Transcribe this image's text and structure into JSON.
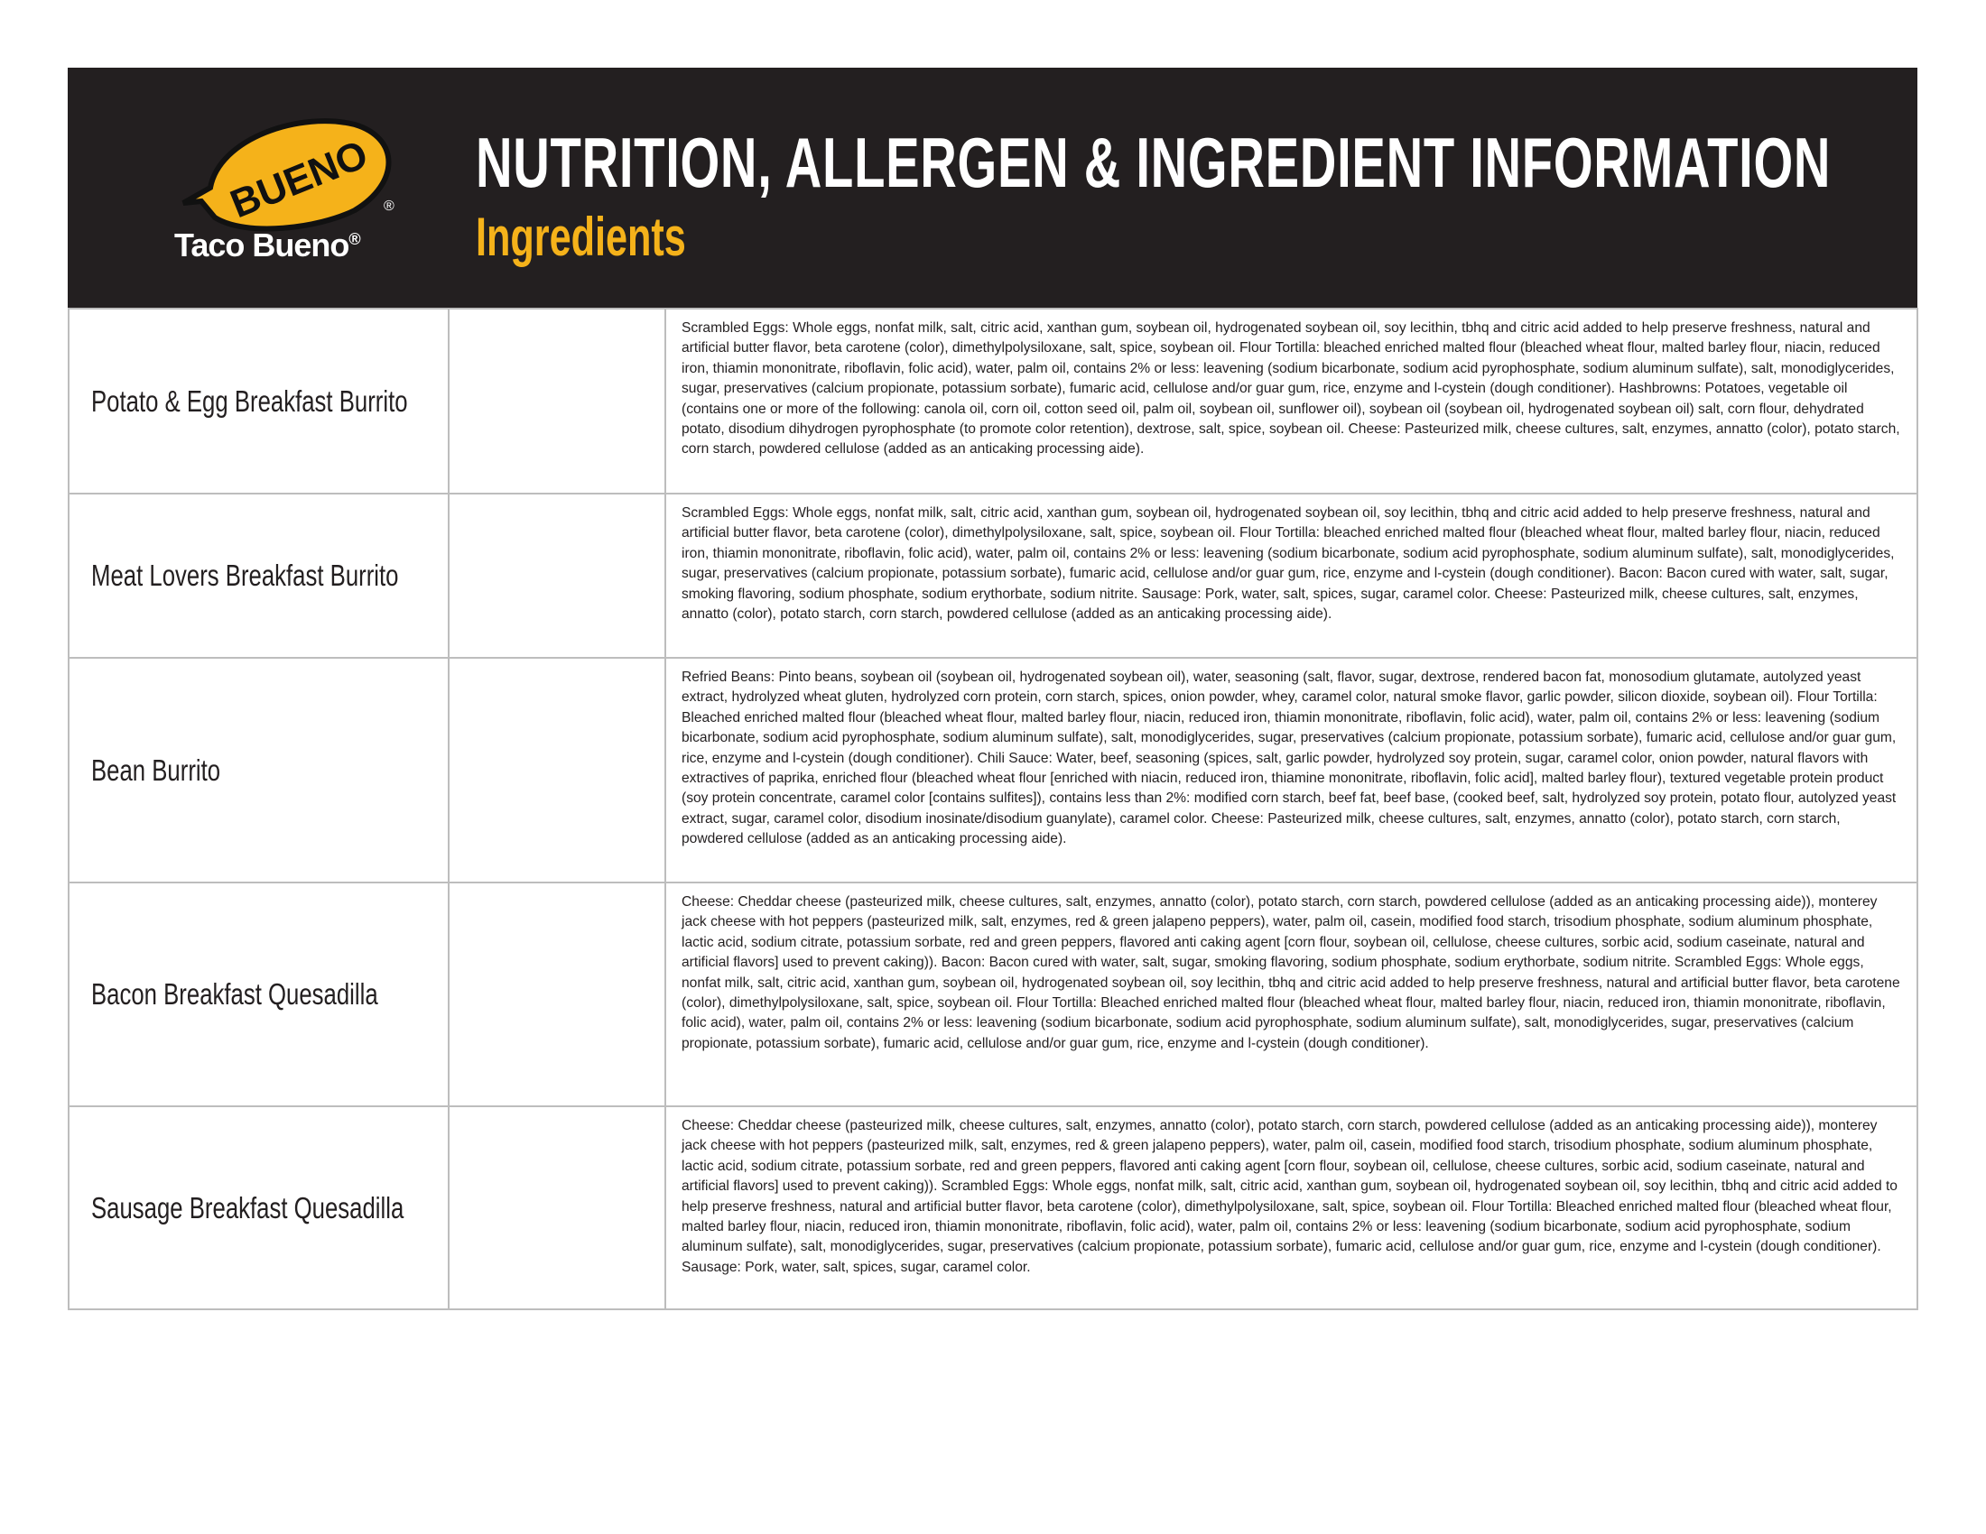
{
  "header": {
    "logo_text": "BUENO",
    "brand": "Taco Bueno",
    "brand_mark": "®",
    "title": "NUTRITION, ALLERGEN & INGREDIENT INFORMATION",
    "subtitle": "Ingredients",
    "colors": {
      "background": "#231f20",
      "accent": "#f5b21a"
    }
  },
  "items": [
    {
      "name": "Potato & Egg Breakfast Burrito",
      "ingredients": "Scrambled Eggs: Whole eggs, nonfat milk, salt, citric acid, xanthan gum, soybean oil, hydrogenated soybean oil, soy lecithin, tbhq and citric acid added to help preserve freshness, natural and artificial butter flavor, beta carotene (color), dimethylpolysiloxane, salt, spice, soybean oil. Flour Tortilla: bleached enriched malted flour (bleached wheat flour, malted barley flour, niacin, reduced iron, thiamin mononitrate, riboflavin, folic acid), water, palm oil, contains 2% or less: leavening (sodium bicarbonate, sodium acid pyrophosphate, sodium aluminum sulfate), salt, monodiglycerides, sugar, preservatives (calcium propionate, potassium sorbate), fumaric acid, cellulose and/or guar gum, rice, enzyme and l-cystein (dough conditioner). Hashbrowns: Potatoes, vegetable oil (contains one or more of the following: canola oil, corn oil, cotton seed oil, palm oil, soybean oil, sunflower oil), soybean oil (soybean oil, hydrogenated soybean oil) salt, corn flour, dehydrated potato, disodium dihydrogen pyrophosphate (to promote color retention), dextrose, salt, spice, soybean oil. Cheese: Pasteurized milk, cheese cultures, salt, enzymes, annatto (color), potato starch, corn starch, powdered cellulose (added as an anticaking processing aide)."
    },
    {
      "name": "Meat Lovers Breakfast Burrito",
      "ingredients": "Scrambled Eggs: Whole eggs, nonfat milk, salt, citric acid, xanthan gum, soybean oil, hydrogenated soybean oil, soy lecithin, tbhq and citric acid added to help preserve freshness, natural and artificial butter flavor, beta carotene (color), dimethylpolysiloxane, salt, spice, soybean oil. Flour Tortilla: bleached enriched malted flour (bleached wheat flour, malted barley flour, niacin, reduced iron, thiamin mononitrate, riboflavin, folic acid), water, palm oil, contains 2% or less: leavening (sodium bicarbonate, sodium acid pyrophosphate, sodium aluminum sulfate), salt, monodiglycerides, sugar, preservatives (calcium propionate, potassium sorbate), fumaric acid, cellulose and/or guar gum, rice, enzyme and l-cystein (dough conditioner). Bacon: Bacon cured with water, salt, sugar, smoking flavoring, sodium phosphate, sodium erythorbate, sodium nitrite. Sausage: Pork, water, salt, spices, sugar, caramel color. Cheese: Pasteurized milk, cheese cultures, salt, enzymes, annatto (color), potato starch, corn starch, powdered cellulose (added as an anticaking processing aide)."
    },
    {
      "name": "Bean Burrito",
      "ingredients": "Refried Beans: Pinto beans, soybean oil (soybean oil, hydrogenated soybean oil), water, seasoning (salt, flavor, sugar, dextrose, rendered bacon fat, monosodium glutamate, autolyzed yeast extract, hydrolyzed wheat gluten, hydrolyzed corn protein, corn starch, spices, onion powder, whey, caramel color, natural smoke flavor, garlic powder, silicon dioxide, soybean oil). Flour Tortilla: Bleached enriched malted flour (bleached wheat flour, malted barley flour, niacin, reduced iron, thiamin mononitrate, riboflavin, folic acid), water, palm oil, contains 2% or less: leavening (sodium bicarbonate, sodium acid pyrophosphate, sodium aluminum sulfate), salt, monodiglycerides, sugar, preservatives (calcium propionate, potassium sorbate), fumaric acid, cellulose and/or guar gum, rice, enzyme and l-cystein (dough conditioner). Chili Sauce: Water, beef, seasoning (spices, salt, garlic powder, hydrolyzed soy protein, sugar, caramel color, onion powder, natural flavors with extractives of paprika, enriched flour (bleached wheat flour [enriched with niacin, reduced iron, thiamine mononitrate, riboflavin, folic acid], malted barley flour), textured vegetable protein product (soy protein concentrate, caramel color [contains sulfites]), contains less than 2%: modified corn starch, beef fat, beef base, (cooked beef, salt, hydrolyzed soy protein, potato flour, autolyzed yeast extract, sugar, caramel color, disodium inosinate/disodium guanylate), caramel color. Cheese: Pasteurized milk, cheese cultures, salt, enzymes, annatto (color), potato starch, corn starch, powdered cellulose (added as an anticaking processing aide)."
    },
    {
      "name": "Bacon Breakfast Quesadilla",
      "ingredients": "Cheese: Cheddar cheese (pasteurized milk, cheese cultures, salt, enzymes, annatto (color), potato starch, corn starch, powdered cellulose (added as an anticaking processing aide)), monterey jack cheese with hot peppers (pasteurized milk, salt, enzymes, red & green jalapeno peppers), water, palm oil, casein, modified food starch, trisodium phosphate, sodium aluminum phosphate, lactic acid, sodium citrate, potassium sorbate, red and green peppers, flavored anti caking agent [corn flour, soybean oil, cellulose, cheese cultures, sorbic acid, sodium caseinate, natural and artificial flavors] used to prevent caking)). Bacon: Bacon cured with water, salt, sugar, smoking flavoring, sodium phosphate, sodium erythorbate, sodium nitrite. Scrambled Eggs: Whole eggs, nonfat milk, salt, citric acid, xanthan gum, soybean oil, hydrogenated soybean oil, soy lecithin, tbhq and citric acid added to help preserve freshness, natural and artificial butter flavor, beta carotene (color), dimethylpolysiloxane, salt, spice, soybean oil.  Flour Tortilla: Bleached enriched malted flour (bleached wheat flour, malted barley flour, niacin, reduced iron, thiamin mononitrate, riboflavin, folic acid), water, palm oil, contains 2% or less: leavening (sodium bicarbonate, sodium acid pyrophosphate, sodium aluminum sulfate), salt, monodiglycerides, sugar, preservatives (calcium propionate, potassium sorbate), fumaric acid, cellulose and/or guar gum, rice, enzyme and l-cystein (dough conditioner)."
    },
    {
      "name": "Sausage Breakfast Quesadilla",
      "ingredients": "Cheese: Cheddar cheese (pasteurized milk, cheese cultures, salt, enzymes, annatto (color), potato starch, corn starch, powdered cellulose (added as an anticaking processing aide)), monterey jack cheese with hot peppers (pasteurized milk, salt, enzymes, red & green jalapeno peppers), water, palm oil, casein, modified food starch, trisodium phosphate, sodium aluminum phosphate, lactic acid, sodium citrate, potassium sorbate, red and green peppers, flavored anti caking agent [corn flour, soybean oil, cellulose, cheese cultures, sorbic acid, sodium caseinate, natural and artificial flavors] used to prevent caking)). Scrambled Eggs: Whole eggs, nonfat milk, salt, citric acid, xanthan gum, soybean oil, hydrogenated soybean oil, soy lecithin, tbhq and citric acid added to help preserve freshness, natural and artificial butter flavor, beta carotene (color), dimethylpolysiloxane, salt, spice, soybean oil.  Flour Tortilla: Bleached enriched malted flour (bleached wheat flour, malted barley flour, niacin, reduced iron, thiamin mononitrate, riboflavin, folic acid), water, palm oil, contains 2% or less: leavening (sodium bicarbonate, sodium acid pyrophosphate, sodium aluminum sulfate), salt, monodiglycerides, sugar, preservatives (calcium propionate, potassium sorbate), fumaric acid, cellulose and/or guar gum, rice, enzyme and l-cystein (dough conditioner). Sausage: Pork, water, salt, spices, sugar, caramel color."
    }
  ]
}
